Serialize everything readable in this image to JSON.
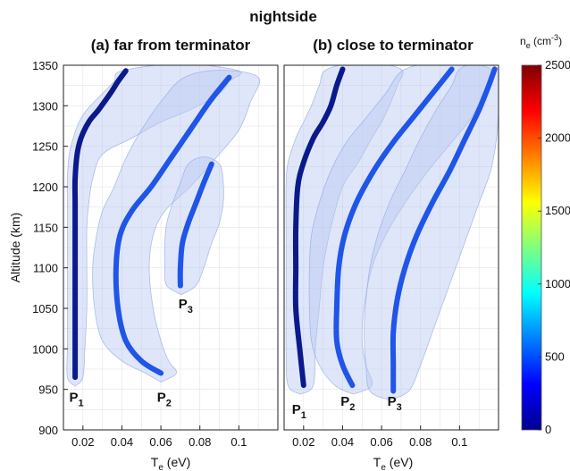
{
  "figure": {
    "title": "nightside"
  },
  "chart_data": [
    {
      "type": "line",
      "title": "(a) far from terminator",
      "xlabel": "T",
      "xlabel_sub": "e",
      "xlabel_unit": "(eV)",
      "ylabel": "Altitude (km)",
      "xlim": [
        0.01,
        0.12
      ],
      "ylim": [
        900,
        1350
      ],
      "xticks": [
        "0.02",
        "0.04",
        "0.06",
        "0.08",
        "0.1"
      ],
      "xtick_values": [
        0.02,
        0.04,
        0.06,
        0.08,
        0.1
      ],
      "yticks": [
        "900",
        "950",
        "1000",
        "1050",
        "1100",
        "1150",
        "1200",
        "1250",
        "1300",
        "1350"
      ],
      "ytick_values": [
        900,
        950,
        1000,
        1050,
        1100,
        1150,
        1200,
        1250,
        1300,
        1350
      ],
      "grid": true,
      "series": [
        {
          "name": "P1",
          "label_sub": "1",
          "color": "#0a1a8c",
          "x": [
            0.016,
            0.016,
            0.016,
            0.016,
            0.016,
            0.016,
            0.016,
            0.017,
            0.019,
            0.023,
            0.028,
            0.034,
            0.038,
            0.042
          ],
          "y": [
            965,
            1000,
            1050,
            1100,
            1150,
            1180,
            1210,
            1240,
            1260,
            1280,
            1295,
            1315,
            1330,
            1343
          ],
          "band_left": [
            0.012,
            0.012,
            0.012,
            0.012,
            0.012,
            0.012,
            0.012,
            0.013,
            0.015,
            0.018,
            0.022,
            0.03,
            0.036,
            0.04
          ],
          "band_right": [
            0.02,
            0.021,
            0.022,
            0.022,
            0.022,
            0.023,
            0.025,
            0.03,
            0.045,
            0.06,
            0.075,
            0.09,
            0.095,
            0.1
          ],
          "label_x": 0.013,
          "label_y": 935
        },
        {
          "name": "P2",
          "label_sub": "2",
          "color": "#1f55e8",
          "x": [
            0.06,
            0.05,
            0.042,
            0.038,
            0.037,
            0.039,
            0.045,
            0.055,
            0.065,
            0.075,
            0.085,
            0.095
          ],
          "y": [
            970,
            985,
            1010,
            1050,
            1100,
            1140,
            1170,
            1200,
            1235,
            1270,
            1305,
            1335
          ],
          "band_left": [
            0.052,
            0.04,
            0.03,
            0.026,
            0.025,
            0.027,
            0.03,
            0.036,
            0.042,
            0.05,
            0.06,
            0.072
          ],
          "band_right": [
            0.068,
            0.064,
            0.06,
            0.056,
            0.054,
            0.056,
            0.062,
            0.075,
            0.088,
            0.1,
            0.106,
            0.11
          ],
          "label_x": 0.058,
          "label_y": 935
        },
        {
          "name": "P3",
          "label_sub": "3",
          "color": "#1f55e8",
          "x": [
            0.07,
            0.07,
            0.071,
            0.074,
            0.078,
            0.082,
            0.086
          ],
          "y": [
            1078,
            1100,
            1130,
            1155,
            1180,
            1205,
            1228
          ],
          "band_left": [
            0.063,
            0.062,
            0.062,
            0.063,
            0.066,
            0.07,
            0.074
          ],
          "band_right": [
            0.078,
            0.082,
            0.086,
            0.09,
            0.092,
            0.092,
            0.09
          ],
          "label_x": 0.069,
          "label_y": 1050
        }
      ]
    },
    {
      "type": "line",
      "title": "(b) close to terminator",
      "xlabel": "T",
      "xlabel_sub": "e",
      "xlabel_unit": "(eV)",
      "ylabel": "",
      "xlim": [
        0.01,
        0.12
      ],
      "ylim": [
        900,
        1350
      ],
      "xticks": [
        "0.02",
        "0.04",
        "0.06",
        "0.08",
        "0.1"
      ],
      "xtick_values": [
        0.02,
        0.04,
        0.06,
        0.08,
        0.1
      ],
      "yticks": [],
      "grid": true,
      "series": [
        {
          "name": "P1",
          "label_sub": "1",
          "color": "#0a1a8c",
          "x": [
            0.02,
            0.018,
            0.016,
            0.016,
            0.016,
            0.017,
            0.02,
            0.025,
            0.03,
            0.034,
            0.037,
            0.04
          ],
          "y": [
            955,
            1000,
            1050,
            1100,
            1150,
            1200,
            1230,
            1260,
            1280,
            1300,
            1325,
            1345
          ],
          "band_left": [
            0.012,
            0.011,
            0.011,
            0.011,
            0.011,
            0.011,
            0.012,
            0.016,
            0.02,
            0.024,
            0.028,
            0.032
          ],
          "band_right": [
            0.025,
            0.026,
            0.028,
            0.03,
            0.034,
            0.04,
            0.048,
            0.055,
            0.06,
            0.064,
            0.068,
            0.07
          ],
          "label_x": 0.014,
          "label_y": 920
        },
        {
          "name": "P2",
          "label_sub": "2",
          "color": "#1f55e8",
          "x": [
            0.045,
            0.04,
            0.037,
            0.037,
            0.038,
            0.041,
            0.047,
            0.056,
            0.066,
            0.076,
            0.086,
            0.096
          ],
          "y": [
            955,
            980,
            1010,
            1050,
            1100,
            1140,
            1180,
            1220,
            1255,
            1285,
            1315,
            1345
          ],
          "band_left": [
            0.036,
            0.028,
            0.024,
            0.023,
            0.023,
            0.024,
            0.028,
            0.034,
            0.042,
            0.052,
            0.062,
            0.072
          ],
          "band_right": [
            0.055,
            0.052,
            0.05,
            0.051,
            0.055,
            0.062,
            0.072,
            0.084,
            0.096,
            0.106,
            0.112,
            0.116
          ],
          "label_x": 0.039,
          "label_y": 930
        },
        {
          "name": "P3",
          "label_sub": "3",
          "color": "#1f55e8",
          "x": [
            0.066,
            0.066,
            0.066,
            0.068,
            0.072,
            0.078,
            0.086,
            0.095,
            0.103,
            0.11,
            0.115,
            0.118
          ],
          "y": [
            948,
            980,
            1020,
            1060,
            1100,
            1140,
            1180,
            1220,
            1260,
            1295,
            1325,
            1345
          ],
          "band_left": [
            0.054,
            0.052,
            0.051,
            0.052,
            0.054,
            0.058,
            0.064,
            0.072,
            0.08,
            0.088,
            0.096,
            0.1
          ],
          "band_right": [
            0.074,
            0.08,
            0.086,
            0.092,
            0.098,
            0.104,
            0.11,
            0.116,
            0.119,
            0.12,
            0.12,
            0.12
          ],
          "label_x": 0.063,
          "label_y": 930
        }
      ]
    }
  ],
  "colorbar": {
    "label": "n",
    "label_sub": "e",
    "label_unit": "(cm",
    "label_unit_sup": "-3",
    "label_close": ")",
    "min": 0,
    "max": 2500,
    "ticks": [
      "0",
      "500",
      "1000",
      "1500",
      "2000",
      "2500"
    ],
    "tick_values": [
      0,
      500,
      1000,
      1500,
      2000,
      2500
    ],
    "colormap": "jet"
  },
  "style": {
    "band_fill": "#b7c8f2",
    "band_stroke": "#8ea6e0",
    "grid_color": "#e3e3e3",
    "axes_color": "#222222"
  }
}
